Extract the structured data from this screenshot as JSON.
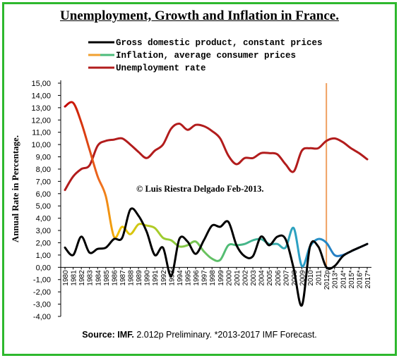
{
  "title": "Unemployment, Growth and Inflation in France.",
  "source": {
    "label": "Source: IMF.",
    "text": "2.012p Preliminary. *2013-2017 IMF Forecast."
  },
  "copyright": "© Luis Riestra Delgado Feb-2013.",
  "chart_data": {
    "type": "line",
    "x": [
      "1980",
      "1981",
      "1982",
      "1983",
      "1984",
      "1985",
      "1986",
      "1987",
      "1988",
      "1989",
      "1990",
      "1991",
      "1992",
      "1993",
      "1994",
      "1995",
      "1996",
      "1997",
      "1998",
      "1999",
      "2000",
      "2001",
      "2002",
      "2003",
      "2004",
      "2005",
      "2006",
      "2007",
      "2008",
      "2009",
      "2010",
      "2011",
      "2012p",
      "2013*",
      "2014*",
      "2015*",
      "2016*",
      "2017*"
    ],
    "ylabel": "Annual Rate in Percentage.",
    "ylim": [
      -4,
      15
    ],
    "yticks": [
      "15,00",
      "14,00",
      "13,00",
      "12,00",
      "11,00",
      "10,00",
      "9,00",
      "8,00",
      "7,00",
      "6,00",
      "5,00",
      "4,00",
      "3,00",
      "2,00",
      "1,00",
      "0,00",
      "-1,00",
      "-2,00",
      "-3,00",
      "-4,00"
    ],
    "grid": false,
    "legend_position": "top",
    "series": [
      {
        "name": "Gross domestic product, constant prices",
        "color": "#000000",
        "values": [
          1.6,
          1.0,
          2.5,
          1.2,
          1.5,
          1.6,
          2.3,
          2.4,
          4.7,
          4.2,
          2.9,
          1.0,
          1.6,
          -0.7,
          2.3,
          2.1,
          1.1,
          2.2,
          3.4,
          3.3,
          3.7,
          1.8,
          0.9,
          0.9,
          2.5,
          1.8,
          2.5,
          2.3,
          -0.1,
          -3.1,
          1.7,
          1.7,
          0.0,
          0.1,
          0.9,
          1.3,
          1.6,
          1.9
        ]
      },
      {
        "name": "Inflation, average consumer prices",
        "color_scale": [
          "#c00000",
          "#f07020",
          "#f2c200",
          "#9acd32",
          "#4cbb7a",
          "#2a9fc7",
          "#1e5fbf"
        ],
        "values": [
          13.1,
          13.4,
          11.8,
          9.6,
          7.4,
          5.8,
          2.5,
          3.3,
          2.7,
          3.5,
          3.4,
          3.2,
          2.4,
          2.2,
          1.7,
          1.8,
          2.1,
          1.3,
          0.7,
          0.6,
          1.8,
          1.8,
          1.9,
          2.2,
          2.3,
          1.9,
          1.9,
          1.6,
          3.2,
          0.1,
          1.7,
          2.3,
          2.0,
          1.0,
          1.0,
          1.3,
          1.6,
          1.9
        ]
      },
      {
        "name": "Unemployment rate",
        "color": "#b21c1c",
        "values": [
          6.3,
          7.4,
          8.0,
          8.3,
          9.9,
          10.3,
          10.4,
          10.5,
          10.0,
          9.4,
          8.9,
          9.5,
          10.0,
          11.3,
          11.7,
          11.2,
          11.6,
          11.5,
          11.1,
          10.5,
          9.1,
          8.4,
          8.9,
          8.9,
          9.3,
          9.3,
          9.2,
          8.4,
          7.8,
          9.5,
          9.7,
          9.7,
          10.3,
          10.5,
          10.2,
          9.7,
          9.3,
          8.8
        ]
      }
    ],
    "vertical_marker": {
      "at": "2012p",
      "color": "#f0a060"
    }
  }
}
